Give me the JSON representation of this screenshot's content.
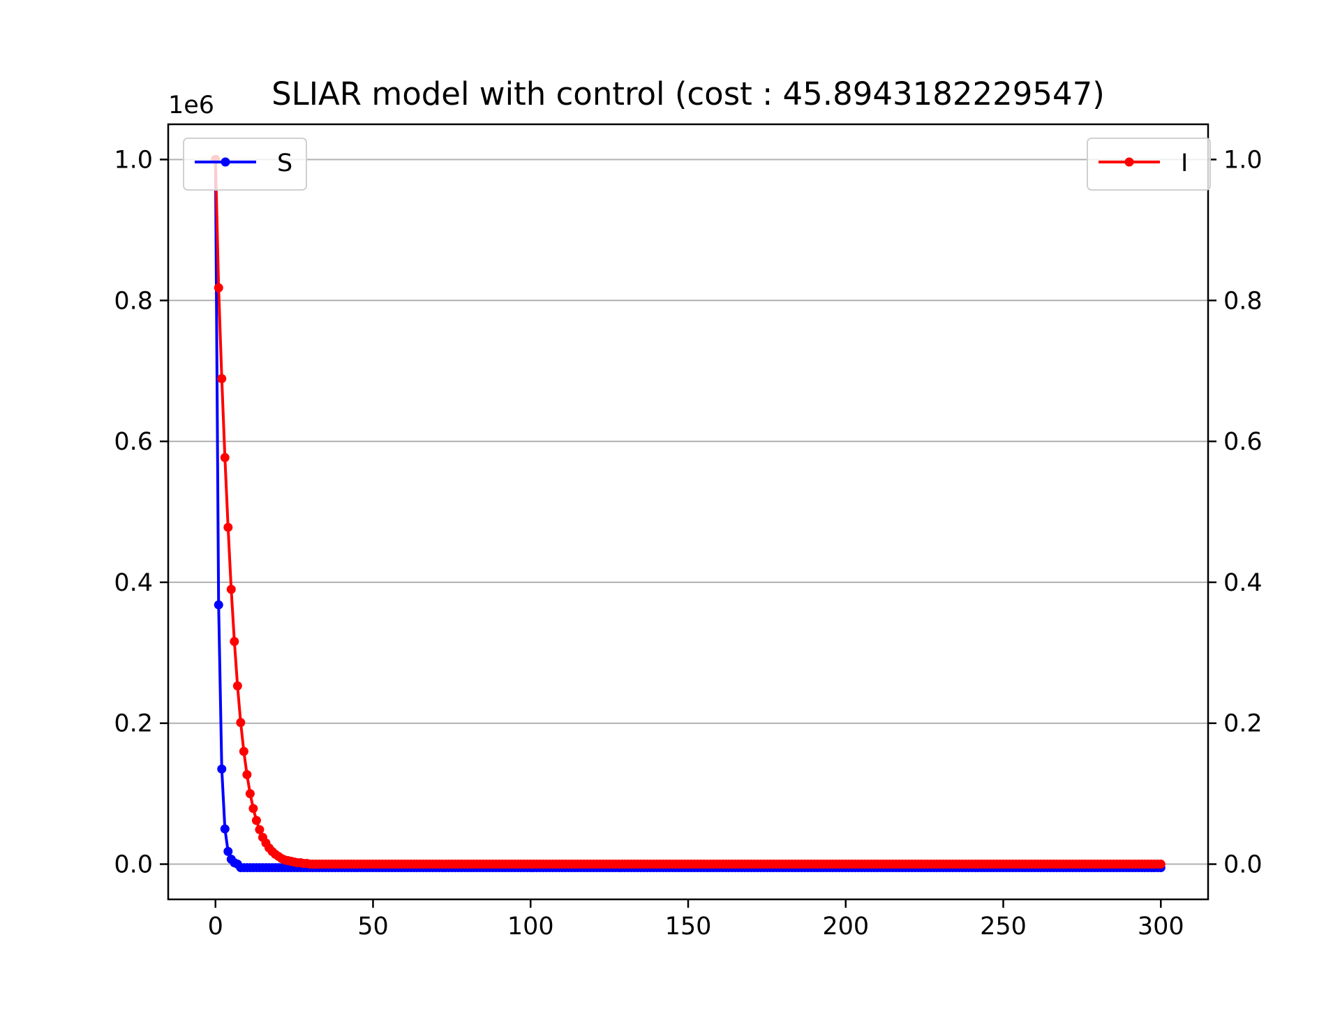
{
  "chart_data": {
    "type": "line",
    "title": "SLIAR model with control (cost : 45.8943182229547)",
    "y_offset_label": "1e6",
    "xlabel": "",
    "ylabel": "",
    "xlim": [
      -15,
      315
    ],
    "ylim": [
      -0.05,
      1.05
    ],
    "x_ticks": [
      0,
      50,
      100,
      150,
      200,
      250,
      300
    ],
    "y_ticks": [
      0.0,
      0.2,
      0.4,
      0.6,
      0.8,
      1.0
    ],
    "y_tick_labels": [
      "0.0",
      "0.2",
      "0.4",
      "0.6",
      "0.8",
      "1.0"
    ],
    "right_y_ticks": [
      0.0,
      0.2,
      0.4,
      0.6,
      0.8,
      1.0
    ],
    "right_y_tick_labels": [
      "0.0",
      "0.2",
      "0.4",
      "0.6",
      "0.8",
      "1.0"
    ],
    "grid": "horizontal",
    "series": [
      {
        "name": "S",
        "axis": "left",
        "color": "#0000ff",
        "legend": "upper-left",
        "marker": "dot",
        "x_start": 0,
        "x_end": 300,
        "values_head": [
          1.0,
          0.368,
          0.135,
          0.05,
          0.018,
          0.007,
          0.002,
          0.0
        ],
        "tail_value": -0.005
      },
      {
        "name": "I",
        "axis": "right",
        "color": "#ff0000",
        "legend": "upper-right",
        "marker": "dot",
        "x_start": 0,
        "x_end": 300,
        "values_head": [
          1.0,
          0.818,
          0.689,
          0.577,
          0.478,
          0.39,
          0.316,
          0.253,
          0.201,
          0.16,
          0.127,
          0.1,
          0.079,
          0.062,
          0.049,
          0.038,
          0.03,
          0.023,
          0.018,
          0.014,
          0.011,
          0.008,
          0.006,
          0.005,
          0.004,
          0.003,
          0.002,
          0.002,
          0.001,
          0.001,
          0.0
        ],
        "tail_value": 0.0
      }
    ]
  },
  "colors": {
    "grid": "#b0b0b0",
    "axes": "#000000",
    "legend_border": "#d0d0d0"
  }
}
